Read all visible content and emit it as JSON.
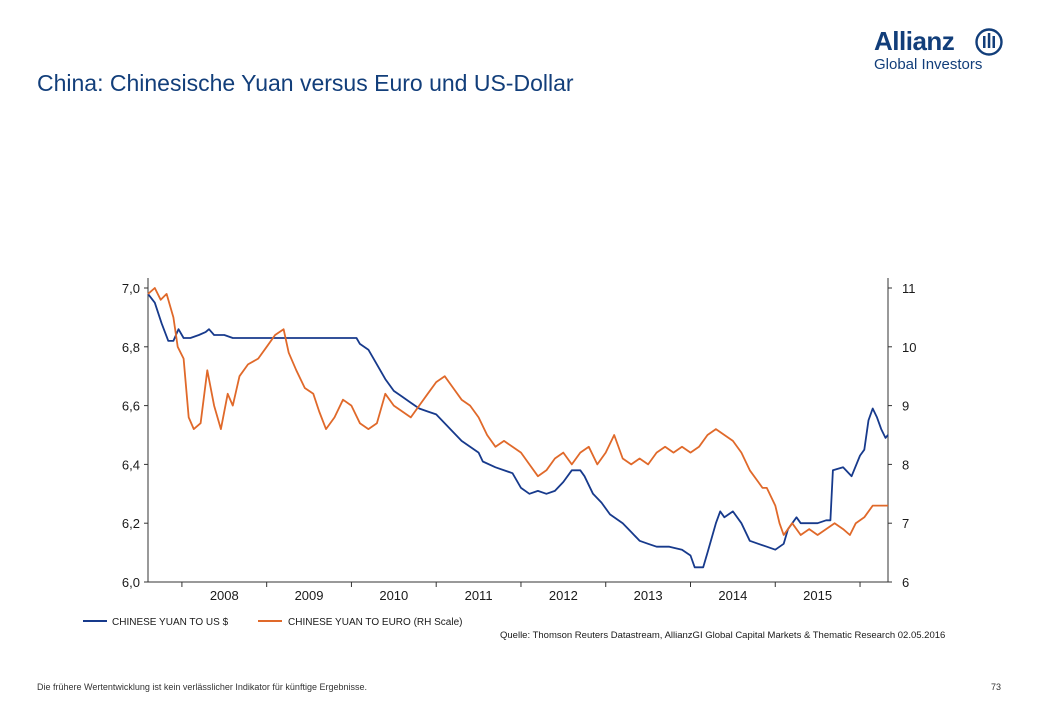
{
  "header": {
    "title": "China: Chinesische Yuan versus Euro und US-Dollar",
    "logo_word": "Allianz",
    "logo_sub": "Global Investors"
  },
  "footer": {
    "disclaimer": "Die frühere Wertentwicklung ist kein verlässlicher Indikator für künftige Ergebnisse.",
    "page_number": "73"
  },
  "colors": {
    "brand": "#123e7a",
    "usd_series": "#173a8c",
    "eur_series": "#e0692a"
  },
  "chart_data": {
    "type": "line",
    "title": "",
    "source": "Quelle: Thomson Reuters Datastream, AllianzGI Global Capital Markets & Thematic Research 02.05.2016",
    "x_ticks": [
      "2008",
      "2009",
      "2010",
      "2011",
      "2012",
      "2013",
      "2014",
      "2015"
    ],
    "x_range": [
      2007.6,
      2016.33
    ],
    "y_left": {
      "range": [
        6.0,
        7.0
      ],
      "ticks": [
        "6,0",
        "6,2",
        "6,4",
        "6,6",
        "6,8",
        "7,0"
      ]
    },
    "y_right": {
      "range": [
        6,
        11
      ],
      "ticks": [
        "6",
        "7",
        "8",
        "9",
        "10",
        "11"
      ]
    },
    "grid": false,
    "legend_position": "bottom-left",
    "series": [
      {
        "name": "CHINESE YUAN TO US $",
        "axis": "left",
        "points": [
          [
            2007.6,
            6.98
          ],
          [
            2007.68,
            6.95
          ],
          [
            2007.76,
            6.88
          ],
          [
            2007.84,
            6.82
          ],
          [
            2007.9,
            6.82
          ],
          [
            2007.96,
            6.86
          ],
          [
            2008.02,
            6.83
          ],
          [
            2008.1,
            6.83
          ],
          [
            2008.2,
            6.84
          ],
          [
            2008.28,
            6.85
          ],
          [
            2008.32,
            6.86
          ],
          [
            2008.38,
            6.84
          ],
          [
            2008.5,
            6.84
          ],
          [
            2008.6,
            6.83
          ],
          [
            2008.8,
            6.83
          ],
          [
            2009.2,
            6.83
          ],
          [
            2009.6,
            6.83
          ],
          [
            2010.0,
            6.83
          ],
          [
            2010.06,
            6.83
          ],
          [
            2010.1,
            6.81
          ],
          [
            2010.2,
            6.79
          ],
          [
            2010.3,
            6.74
          ],
          [
            2010.4,
            6.69
          ],
          [
            2010.5,
            6.65
          ],
          [
            2010.6,
            6.63
          ],
          [
            2010.7,
            6.61
          ],
          [
            2010.8,
            6.59
          ],
          [
            2010.9,
            6.58
          ],
          [
            2011.0,
            6.57
          ],
          [
            2011.1,
            6.54
          ],
          [
            2011.2,
            6.51
          ],
          [
            2011.3,
            6.48
          ],
          [
            2011.4,
            6.46
          ],
          [
            2011.5,
            6.44
          ],
          [
            2011.55,
            6.41
          ],
          [
            2011.7,
            6.39
          ],
          [
            2011.9,
            6.37
          ],
          [
            2012.0,
            6.32
          ],
          [
            2012.1,
            6.3
          ],
          [
            2012.2,
            6.31
          ],
          [
            2012.3,
            6.3
          ],
          [
            2012.4,
            6.31
          ],
          [
            2012.5,
            6.34
          ],
          [
            2012.6,
            6.38
          ],
          [
            2012.7,
            6.38
          ],
          [
            2012.75,
            6.36
          ],
          [
            2012.85,
            6.3
          ],
          [
            2012.95,
            6.27
          ],
          [
            2013.05,
            6.23
          ],
          [
            2013.2,
            6.2
          ],
          [
            2013.3,
            6.17
          ],
          [
            2013.4,
            6.14
          ],
          [
            2013.5,
            6.13
          ],
          [
            2013.6,
            6.12
          ],
          [
            2013.75,
            6.12
          ],
          [
            2013.9,
            6.11
          ],
          [
            2014.0,
            6.09
          ],
          [
            2014.05,
            6.05
          ],
          [
            2014.15,
            6.05
          ],
          [
            2014.2,
            6.1
          ],
          [
            2014.3,
            6.2
          ],
          [
            2014.35,
            6.24
          ],
          [
            2014.4,
            6.22
          ],
          [
            2014.5,
            6.24
          ],
          [
            2014.6,
            6.2
          ],
          [
            2014.7,
            6.14
          ],
          [
            2014.8,
            6.13
          ],
          [
            2014.9,
            6.12
          ],
          [
            2015.0,
            6.11
          ],
          [
            2015.1,
            6.13
          ],
          [
            2015.15,
            6.18
          ],
          [
            2015.25,
            6.22
          ],
          [
            2015.3,
            6.2
          ],
          [
            2015.5,
            6.2
          ],
          [
            2015.6,
            6.21
          ],
          [
            2015.65,
            6.21
          ],
          [
            2015.68,
            6.38
          ],
          [
            2015.8,
            6.39
          ],
          [
            2015.9,
            6.36
          ],
          [
            2016.0,
            6.43
          ],
          [
            2016.05,
            6.45
          ],
          [
            2016.1,
            6.55
          ],
          [
            2016.15,
            6.59
          ],
          [
            2016.2,
            6.56
          ],
          [
            2016.25,
            6.52
          ],
          [
            2016.3,
            6.49
          ],
          [
            2016.33,
            6.5
          ]
        ]
      },
      {
        "name": "CHINESE YUAN TO EURO (RH Scale)",
        "axis": "right",
        "points": [
          [
            2007.6,
            10.9
          ],
          [
            2007.68,
            11.0
          ],
          [
            2007.75,
            10.8
          ],
          [
            2007.82,
            10.9
          ],
          [
            2007.9,
            10.5
          ],
          [
            2007.95,
            10.0
          ],
          [
            2008.02,
            9.8
          ],
          [
            2008.08,
            8.8
          ],
          [
            2008.14,
            8.6
          ],
          [
            2008.22,
            8.7
          ],
          [
            2008.3,
            9.6
          ],
          [
            2008.38,
            9.0
          ],
          [
            2008.46,
            8.6
          ],
          [
            2008.54,
            9.2
          ],
          [
            2008.6,
            9.0
          ],
          [
            2008.68,
            9.5
          ],
          [
            2008.78,
            9.7
          ],
          [
            2008.9,
            9.8
          ],
          [
            2009.0,
            10.0
          ],
          [
            2009.1,
            10.2
          ],
          [
            2009.2,
            10.3
          ],
          [
            2009.26,
            9.9
          ],
          [
            2009.35,
            9.6
          ],
          [
            2009.45,
            9.3
          ],
          [
            2009.55,
            9.2
          ],
          [
            2009.62,
            8.9
          ],
          [
            2009.7,
            8.6
          ],
          [
            2009.8,
            8.8
          ],
          [
            2009.9,
            9.1
          ],
          [
            2010.0,
            9.0
          ],
          [
            2010.1,
            8.7
          ],
          [
            2010.2,
            8.6
          ],
          [
            2010.3,
            8.7
          ],
          [
            2010.4,
            9.2
          ],
          [
            2010.5,
            9.0
          ],
          [
            2010.6,
            8.9
          ],
          [
            2010.7,
            8.8
          ],
          [
            2010.8,
            9.0
          ],
          [
            2010.9,
            9.2
          ],
          [
            2011.0,
            9.4
          ],
          [
            2011.1,
            9.5
          ],
          [
            2011.2,
            9.3
          ],
          [
            2011.3,
            9.1
          ],
          [
            2011.4,
            9.0
          ],
          [
            2011.5,
            8.8
          ],
          [
            2011.6,
            8.5
          ],
          [
            2011.7,
            8.3
          ],
          [
            2011.8,
            8.4
          ],
          [
            2011.9,
            8.3
          ],
          [
            2012.0,
            8.2
          ],
          [
            2012.1,
            8.0
          ],
          [
            2012.2,
            7.8
          ],
          [
            2012.3,
            7.9
          ],
          [
            2012.4,
            8.1
          ],
          [
            2012.5,
            8.2
          ],
          [
            2012.6,
            8.0
          ],
          [
            2012.7,
            8.2
          ],
          [
            2012.8,
            8.3
          ],
          [
            2012.9,
            8.0
          ],
          [
            2013.0,
            8.2
          ],
          [
            2013.1,
            8.5
          ],
          [
            2013.2,
            8.1
          ],
          [
            2013.3,
            8.0
          ],
          [
            2013.4,
            8.1
          ],
          [
            2013.5,
            8.0
          ],
          [
            2013.6,
            8.2
          ],
          [
            2013.7,
            8.3
          ],
          [
            2013.8,
            8.2
          ],
          [
            2013.9,
            8.3
          ],
          [
            2014.0,
            8.2
          ],
          [
            2014.1,
            8.3
          ],
          [
            2014.2,
            8.5
          ],
          [
            2014.3,
            8.6
          ],
          [
            2014.4,
            8.5
          ],
          [
            2014.5,
            8.4
          ],
          [
            2014.6,
            8.2
          ],
          [
            2014.7,
            7.9
          ],
          [
            2014.8,
            7.7
          ],
          [
            2014.85,
            7.6
          ],
          [
            2014.9,
            7.6
          ],
          [
            2015.0,
            7.3
          ],
          [
            2015.05,
            7.0
          ],
          [
            2015.1,
            6.8
          ],
          [
            2015.2,
            7.0
          ],
          [
            2015.3,
            6.8
          ],
          [
            2015.4,
            6.9
          ],
          [
            2015.5,
            6.8
          ],
          [
            2015.6,
            6.9
          ],
          [
            2015.7,
            7.0
          ],
          [
            2015.8,
            6.9
          ],
          [
            2015.88,
            6.8
          ],
          [
            2015.95,
            7.0
          ],
          [
            2016.05,
            7.1
          ],
          [
            2016.15,
            7.3
          ],
          [
            2016.25,
            7.3
          ],
          [
            2016.33,
            7.3
          ]
        ]
      }
    ]
  }
}
